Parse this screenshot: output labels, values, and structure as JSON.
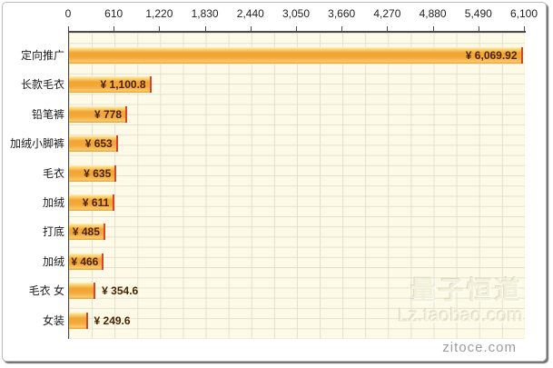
{
  "chart_data": {
    "type": "bar",
    "orientation": "horizontal",
    "title": "",
    "xlabel": "",
    "ylabel": "",
    "xlim": [
      0,
      6100
    ],
    "grid": true,
    "axis_ticks": [
      "0",
      "610",
      "1,220",
      "1,830",
      "2,440",
      "3,050",
      "3,660",
      "4,270",
      "4,880",
      "5,490",
      "6,100"
    ],
    "categories": [
      "定向推广",
      "长款毛衣",
      "铅笔裤",
      "加绒小脚裤",
      "毛衣",
      "加绒",
      "打底",
      "加绒",
      "毛衣 女",
      "女装"
    ],
    "values": [
      6069.92,
      1100.8,
      778,
      653,
      635,
      611,
      485,
      466,
      354.6,
      249.6
    ],
    "value_labels": [
      "¥ 6,069.92",
      "¥ 1,100.8",
      "¥ 778",
      "¥ 653",
      "¥ 635",
      "¥ 611",
      "¥ 485",
      "¥ 466",
      "¥ 354.6",
      "¥ 249.6"
    ],
    "colors": {
      "bar_main": "#f3a83a",
      "bar_highlight": "#fef3c5",
      "bar_end_marker": "#d2452e",
      "plot_background": "#fdfbe7",
      "grid_line": "#e3e0d0",
      "value_text": "#4a2400",
      "category_text": "#1a1a1a",
      "axis_line": "#4a4a4a"
    }
  },
  "watermark": {
    "line1": "量子恒道",
    "line2": "Lz.taobao.com"
  },
  "footer": {
    "site": "zitoce.com"
  }
}
